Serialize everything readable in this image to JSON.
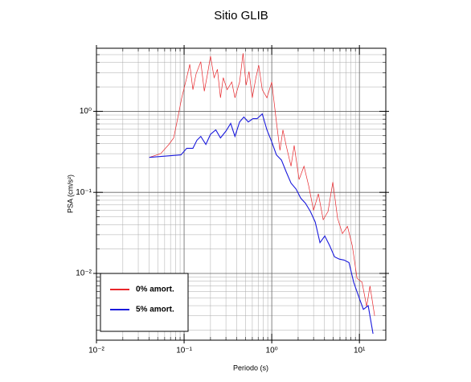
{
  "chart_data": {
    "type": "line",
    "title": "Sitio GLIB",
    "xlabel": "Periodo (s)",
    "ylabel": "PSA (cm/s²)",
    "log_x": true,
    "log_y": true,
    "grid": true,
    "legend": "lower left",
    "xlim": [
      0.01,
      20
    ],
    "ylim": [
      0.0015,
      6
    ],
    "xticks": [
      {
        "value": 0.01,
        "label": "10⁻²"
      },
      {
        "value": 0.1,
        "label": "10⁻¹"
      },
      {
        "value": 1,
        "label": "10⁰"
      },
      {
        "value": 10,
        "label": "10¹"
      }
    ],
    "yticks": [
      {
        "value": 0.01,
        "label": "10⁻²"
      },
      {
        "value": 0.1,
        "label": "10⁻¹"
      },
      {
        "value": 1,
        "label": "10⁰"
      }
    ],
    "series": [
      {
        "name": "0% amort.",
        "color": "#e8262b",
        "x": [
          0.04,
          0.054,
          0.067,
          0.076,
          0.083,
          0.094,
          0.107,
          0.116,
          0.126,
          0.137,
          0.155,
          0.17,
          0.185,
          0.2,
          0.22,
          0.24,
          0.26,
          0.28,
          0.31,
          0.35,
          0.38,
          0.43,
          0.47,
          0.51,
          0.55,
          0.6,
          0.66,
          0.71,
          0.78,
          0.88,
          1.0,
          1.13,
          1.24,
          1.34,
          1.46,
          1.66,
          1.8,
          2.05,
          2.33,
          2.64,
          3.0,
          3.4,
          3.86,
          4.38,
          4.97,
          5.64,
          6.4,
          7.3,
          8.3,
          9.4,
          10.7,
          12.1,
          13.2,
          14.9
        ],
        "values": [
          0.27,
          0.3,
          0.39,
          0.47,
          0.74,
          1.47,
          2.6,
          3.8,
          1.85,
          2.9,
          4.1,
          1.77,
          2.9,
          4.8,
          2.6,
          3.3,
          1.47,
          2.6,
          1.85,
          2.3,
          1.47,
          2.3,
          5.2,
          2.1,
          3.1,
          1.47,
          2.6,
          3.7,
          1.85,
          1.47,
          2.3,
          0.74,
          0.33,
          0.59,
          0.38,
          0.21,
          0.38,
          0.144,
          0.21,
          0.12,
          0.06,
          0.096,
          0.046,
          0.058,
          0.134,
          0.048,
          0.031,
          0.038,
          0.022,
          0.0087,
          0.0078,
          0.0039,
          0.007,
          0.003
        ]
      },
      {
        "name": "5% amort.",
        "color": "#1a1adc",
        "x": [
          0.04,
          0.092,
          0.107,
          0.126,
          0.14,
          0.155,
          0.177,
          0.2,
          0.23,
          0.26,
          0.3,
          0.34,
          0.38,
          0.43,
          0.48,
          0.54,
          0.61,
          0.68,
          0.78,
          0.88,
          1.0,
          1.13,
          1.29,
          1.46,
          1.66,
          1.89,
          2.14,
          2.43,
          2.76,
          3.13,
          3.55,
          4.03,
          4.58,
          5.2,
          5.9,
          6.7,
          7.6,
          8.6,
          9.8,
          11.1,
          12.6,
          14.3
        ],
        "values": [
          0.27,
          0.29,
          0.35,
          0.35,
          0.44,
          0.49,
          0.39,
          0.52,
          0.59,
          0.47,
          0.57,
          0.71,
          0.49,
          0.74,
          0.85,
          0.74,
          0.81,
          0.81,
          0.93,
          0.59,
          0.42,
          0.29,
          0.25,
          0.18,
          0.13,
          0.11,
          0.085,
          0.073,
          0.058,
          0.043,
          0.024,
          0.029,
          0.022,
          0.016,
          0.015,
          0.0146,
          0.0136,
          0.0078,
          0.0052,
          0.0036,
          0.004,
          0.0018
        ]
      }
    ]
  }
}
